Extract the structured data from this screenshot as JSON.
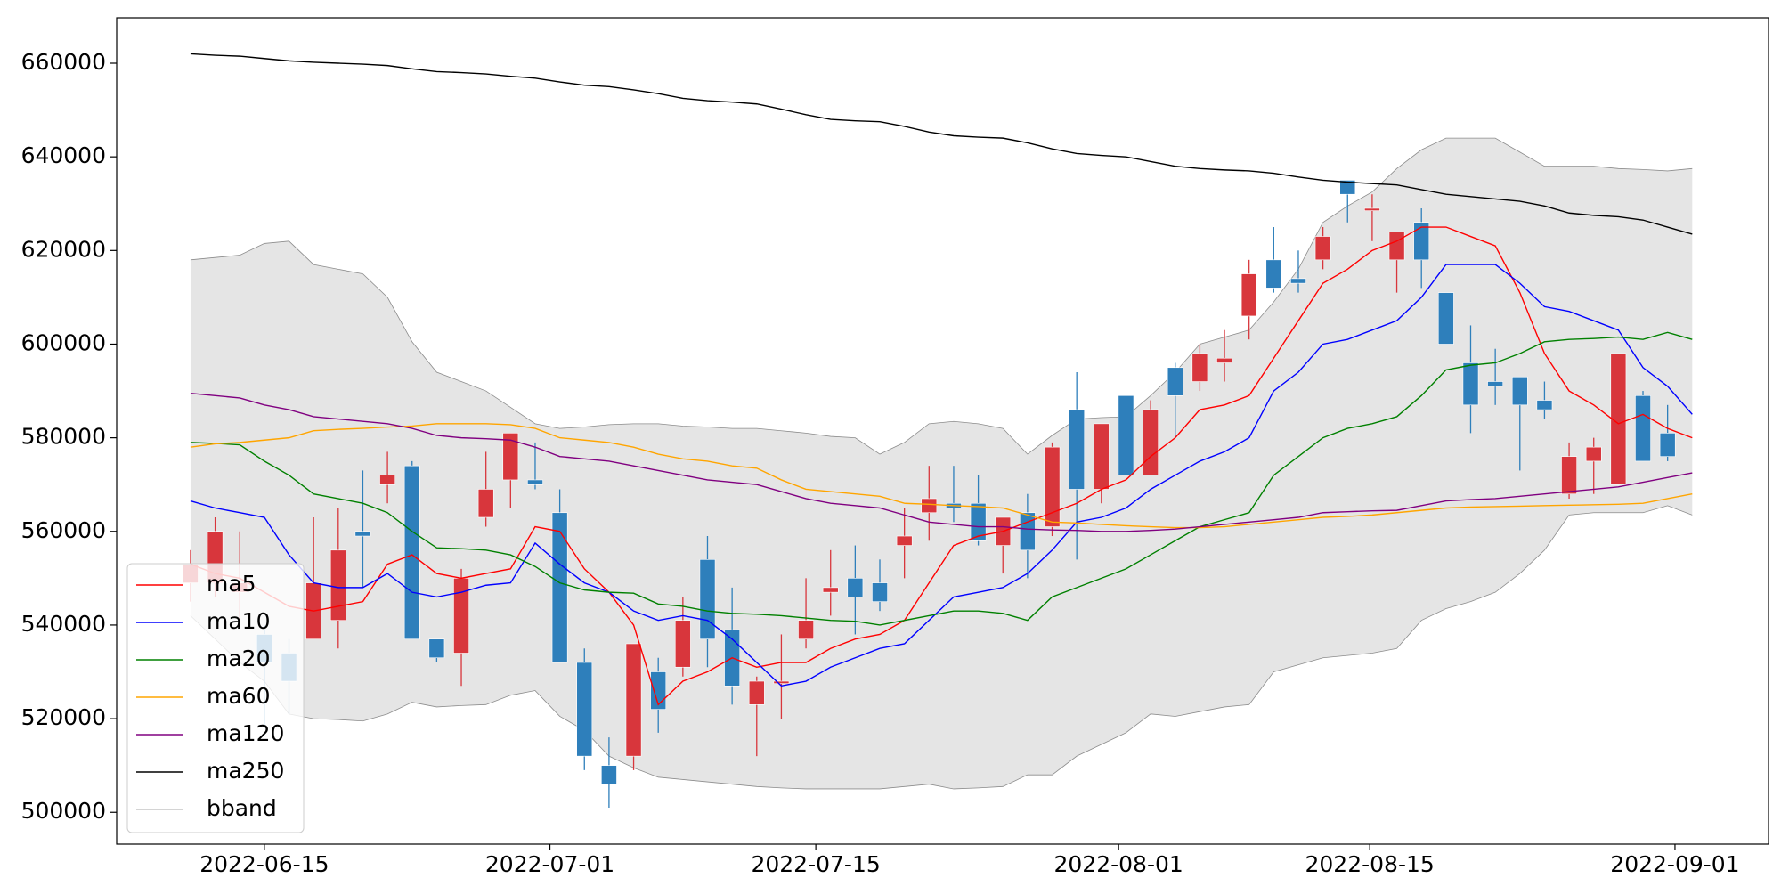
{
  "chart_data": {
    "type": "candlestick",
    "x": [
      0,
      1,
      2,
      3,
      4,
      5,
      6,
      7,
      8,
      9,
      10,
      11,
      12,
      13,
      14,
      15,
      16,
      17,
      18,
      19,
      20,
      21,
      22,
      23,
      24,
      25,
      26,
      27,
      28,
      29,
      30,
      31,
      32,
      33,
      34,
      35,
      36,
      37,
      38,
      39,
      40,
      41,
      42,
      43,
      44,
      45,
      46,
      47,
      48,
      49,
      50,
      51,
      52,
      53,
      54,
      55,
      56,
      57,
      58,
      59,
      60,
      61
    ],
    "xlim": [
      -3,
      64.1
    ],
    "xticks": [
      {
        "value": 3,
        "label": "2022-06-15"
      },
      {
        "value": 14.6,
        "label": "2022-07-01"
      },
      {
        "value": 25.4,
        "label": "2022-07-15"
      },
      {
        "value": 37.7,
        "label": "2022-08-01"
      },
      {
        "value": 47.9,
        "label": "2022-08-15"
      },
      {
        "value": 60.3,
        "label": "2022-09-01"
      }
    ],
    "ylim": [
      493200,
      669700
    ],
    "yticks": [
      500000,
      520000,
      540000,
      560000,
      580000,
      600000,
      620000,
      640000,
      660000
    ],
    "legend": "lower left",
    "candles": {
      "up_color": "#d8363c",
      "down_color": "#2e7fbb",
      "open": [
        549000,
        549000,
        547000,
        538000,
        534000,
        537000,
        541000,
        560000,
        570000,
        574000,
        537000,
        534000,
        563000,
        571000,
        571000,
        564000,
        532000,
        510000,
        512000,
        530000,
        531000,
        554000,
        539000,
        523000,
        527500,
        537000,
        547000,
        550000,
        549000,
        557000,
        564000,
        566000,
        566000,
        557000,
        564000,
        561000,
        586000,
        569000,
        589000,
        572000,
        595000,
        592000,
        596000,
        606000,
        618000,
        614000,
        618000,
        635000,
        628500,
        618000,
        626000,
        611000,
        596000,
        592000,
        593000,
        588000,
        568000,
        575000,
        570000,
        589000,
        581000,
        null
      ],
      "high": [
        556000,
        563000,
        560000,
        540000,
        537000,
        563000,
        565000,
        573000,
        577000,
        575000,
        537000,
        552000,
        577000,
        581000,
        579000,
        569000,
        535000,
        516000,
        536000,
        533000,
        546000,
        559000,
        548000,
        529000,
        538000,
        550000,
        556000,
        557000,
        554000,
        565000,
        574000,
        574000,
        572000,
        563000,
        568000,
        579000,
        594000,
        583000,
        589000,
        588000,
        596000,
        600000,
        603000,
        618000,
        625000,
        620000,
        625000,
        635000,
        632000,
        624000,
        629000,
        611000,
        604000,
        599000,
        593000,
        592000,
        579000,
        580000,
        598000,
        590000,
        587000,
        null
      ],
      "low": [
        545000,
        546000,
        541000,
        518000,
        521000,
        537000,
        535000,
        548000,
        566000,
        537000,
        532000,
        527000,
        561000,
        565000,
        569000,
        532000,
        509000,
        501000,
        509000,
        517000,
        529000,
        531000,
        523000,
        512000,
        520000,
        535000,
        542000,
        538000,
        543000,
        550000,
        558000,
        562000,
        557000,
        551000,
        550000,
        559000,
        554000,
        566000,
        572000,
        572000,
        580000,
        590000,
        592000,
        601000,
        611000,
        611000,
        616000,
        626000,
        622000,
        611000,
        612000,
        600000,
        581000,
        587000,
        573000,
        584000,
        567000,
        568000,
        570000,
        575000,
        575000,
        null
      ],
      "close": [
        553000,
        560000,
        549000,
        532000,
        528000,
        549000,
        556000,
        559000,
        572000,
        537000,
        533000,
        550000,
        569000,
        581000,
        570000,
        532000,
        512000,
        506000,
        536000,
        522000,
        541000,
        537000,
        527000,
        528000,
        528000,
        541000,
        548000,
        546000,
        545000,
        559000,
        567000,
        565000,
        558000,
        563000,
        556000,
        578000,
        569000,
        583000,
        572000,
        586000,
        589000,
        598000,
        597000,
        615000,
        612000,
        613000,
        623000,
        632000,
        629000,
        624000,
        618000,
        600000,
        587000,
        591000,
        587000,
        586000,
        576000,
        578000,
        598000,
        575000,
        576000,
        null
      ]
    },
    "series": [
      {
        "name": "ma5",
        "color": "#ff0000",
        "values": [
          553000,
          551000,
          550000,
          547000,
          544000,
          543000,
          544000,
          545000,
          553000,
          555000,
          551000,
          550000,
          551000,
          552000,
          561000,
          560000,
          552000,
          547000,
          540000,
          523000,
          528000,
          530000,
          533000,
          531000,
          532000,
          532000,
          535000,
          537000,
          538000,
          541000,
          549000,
          557000,
          559000,
          560000,
          562000,
          564000,
          566000,
          569000,
          571000,
          576000,
          580000,
          586000,
          587000,
          589000,
          597000,
          605000,
          613000,
          616000,
          620000,
          622000,
          625000,
          625000,
          623000,
          621000,
          611000,
          598000,
          590000,
          587000,
          583000,
          585000,
          582000,
          580000
        ]
      },
      {
        "name": "ma10",
        "color": "#0000ff",
        "values": [
          566500,
          565000,
          564000,
          563000,
          555000,
          549000,
          548000,
          548000,
          551000,
          547000,
          546000,
          547000,
          548500,
          549000,
          557500,
          553000,
          549000,
          547000,
          543000,
          541000,
          542000,
          541000,
          537000,
          532000,
          527000,
          528000,
          531000,
          533000,
          535000,
          536000,
          541000,
          546000,
          547000,
          548000,
          551000,
          556000,
          562000,
          563000,
          565000,
          569000,
          572000,
          575000,
          577000,
          580000,
          590000,
          594000,
          600000,
          601000,
          603000,
          605000,
          610000,
          617000,
          617000,
          617000,
          613000,
          608000,
          607000,
          605000,
          603000,
          595000,
          591000,
          585000
        ]
      },
      {
        "name": "ma20",
        "color": "#008000",
        "values": [
          579000,
          578800,
          578500,
          575000,
          572000,
          568000,
          567000,
          566000,
          564000,
          560000,
          556500,
          556300,
          556000,
          555000,
          552500,
          549000,
          547500,
          547000,
          546800,
          544500,
          544000,
          543000,
          542500,
          542300,
          542000,
          541500,
          541000,
          540800,
          540000,
          541000,
          542000,
          543000,
          543000,
          542500,
          541000,
          546000,
          548000,
          550000,
          552000,
          555000,
          558000,
          561000,
          562500,
          564000,
          572000,
          576000,
          580000,
          582000,
          583000,
          584500,
          589000,
          594500,
          595500,
          596000,
          598000,
          600500,
          601000,
          601200,
          601500,
          601000,
          602500,
          601000
        ]
      },
      {
        "name": "ma60",
        "color": "#ffa500",
        "values": [
          578000,
          578700,
          579000,
          579500,
          580000,
          581500,
          581800,
          582000,
          582300,
          582500,
          583000,
          583000,
          583000,
          582800,
          582000,
          580000,
          579500,
          579000,
          578000,
          576500,
          575500,
          575000,
          574000,
          573500,
          571000,
          569000,
          568500,
          568000,
          567500,
          566000,
          565800,
          565500,
          565300,
          565000,
          563500,
          562000,
          561800,
          561500,
          561200,
          561000,
          560800,
          560800,
          561000,
          561500,
          562000,
          562500,
          563000,
          563200,
          563500,
          564000,
          564500,
          565000,
          565200,
          565300,
          565400,
          565500,
          565600,
          565700,
          565800,
          566000,
          567000,
          568000
        ]
      },
      {
        "name": "ma120",
        "color": "#800080",
        "values": [
          589500,
          589000,
          588500,
          587000,
          586000,
          584500,
          584000,
          583500,
          583000,
          582000,
          580500,
          580000,
          579800,
          579500,
          578000,
          576000,
          575500,
          575000,
          574000,
          573000,
          572000,
          571000,
          570500,
          570000,
          568500,
          567000,
          566000,
          565500,
          565000,
          563500,
          562000,
          561500,
          561000,
          561000,
          560500,
          560300,
          560200,
          560000,
          560000,
          560200,
          560500,
          561000,
          561500,
          562000,
          562500,
          563000,
          564000,
          564200,
          564400,
          564500,
          565500,
          566500,
          566800,
          567000,
          567500,
          568000,
          568500,
          569000,
          569500,
          570500,
          571500,
          572500
        ]
      },
      {
        "name": "ma250",
        "color": "#000000",
        "values": [
          662000,
          661700,
          661500,
          661000,
          660500,
          660200,
          660000,
          659800,
          659500,
          658800,
          658200,
          658000,
          657700,
          657200,
          656800,
          656000,
          655300,
          655000,
          654300,
          653500,
          652500,
          652000,
          651700,
          651300,
          650200,
          649000,
          648000,
          647700,
          647500,
          646500,
          645300,
          644500,
          644200,
          644000,
          643000,
          641700,
          640700,
          640300,
          640000,
          639000,
          638000,
          637500,
          637200,
          637000,
          636500,
          635700,
          635000,
          634600,
          634300,
          634000,
          633000,
          632000,
          631500,
          631000,
          630500,
          629500,
          628000,
          627500,
          627200,
          626500,
          625000,
          623500
        ]
      }
    ],
    "bband": {
      "name": "bband",
      "color": "#8c8c8c",
      "fill_color": "#e5e5e5",
      "upper": [
        618000,
        618500,
        619000,
        621500,
        622000,
        617000,
        616000,
        615000,
        610000,
        600500,
        594000,
        592000,
        590000,
        586500,
        583000,
        582000,
        582300,
        582800,
        583000,
        583000,
        582500,
        582300,
        582000,
        582000,
        581500,
        581000,
        580300,
        580000,
        576500,
        579000,
        583000,
        583500,
        583000,
        582000,
        576500,
        580500,
        584000,
        584300,
        584500,
        589000,
        594000,
        600000,
        601500,
        603000,
        609000,
        616000,
        626000,
        629500,
        632500,
        637500,
        641500,
        644000,
        644000,
        644000,
        641000,
        638000,
        638000,
        638000,
        637500,
        637300,
        637000,
        637500
      ],
      "lower": [
        542000,
        537000,
        532000,
        528000,
        521000,
        520000,
        519800,
        519500,
        521000,
        523500,
        522500,
        522800,
        523000,
        525000,
        526000,
        520500,
        517500,
        512000,
        509500,
        507500,
        507000,
        506500,
        506000,
        505500,
        505200,
        505000,
        505000,
        505000,
        505000,
        505500,
        506000,
        505000,
        505200,
        505500,
        508000,
        508000,
        512000,
        514500,
        517000,
        521000,
        520500,
        521500,
        522500,
        523000,
        530000,
        531500,
        533000,
        533500,
        534000,
        535000,
        541000,
        543500,
        545000,
        547000,
        551000,
        556000,
        563500,
        564000,
        564000,
        564000,
        565500,
        563500
      ]
    }
  }
}
